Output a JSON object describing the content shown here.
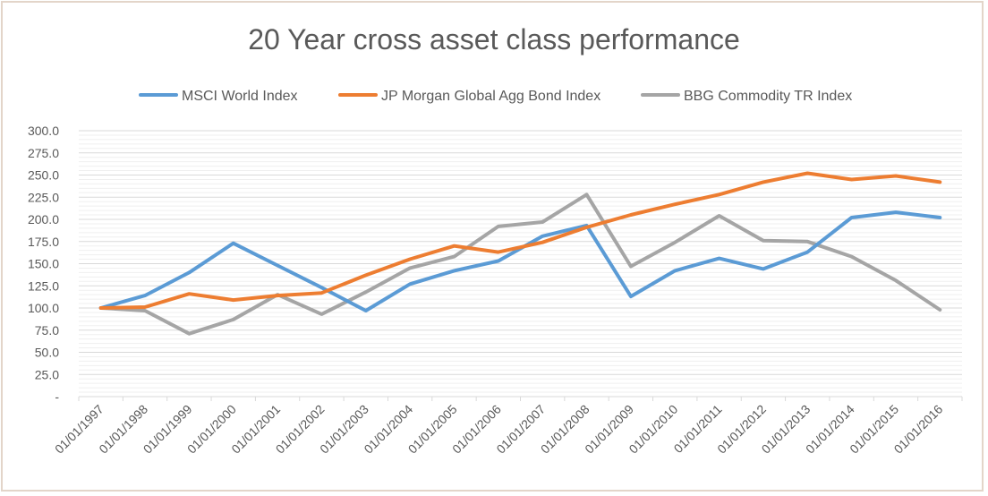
{
  "chart_data": {
    "type": "line",
    "title": "20 Year cross asset class performance",
    "xlabel": "",
    "ylabel": "",
    "categories": [
      "01/01/1997",
      "01/01/1998",
      "01/01/1999",
      "01/01/2000",
      "01/01/2001",
      "01/01/2002",
      "01/01/2003",
      "01/01/2004",
      "01/01/2005",
      "01/01/2006",
      "01/01/2007",
      "01/01/2008",
      "01/01/2009",
      "01/01/2010",
      "01/01/2011",
      "01/01/2012",
      "01/01/2013",
      "01/01/2014",
      "01/01/2015",
      "01/01/2016"
    ],
    "ylim": [
      0,
      300
    ],
    "y_ticks": [
      "-",
      "25.0",
      "50.0",
      "75.0",
      "100.0",
      "125.0",
      "150.0",
      "175.0",
      "200.0",
      "225.0",
      "250.0",
      "275.0",
      "300.0"
    ],
    "grid": true,
    "legend_position": "top",
    "series": [
      {
        "name": "MSCI World Index",
        "color": "#5b9bd5",
        "values": [
          100,
          114,
          140,
          173,
          148,
          123,
          97,
          127,
          142,
          153,
          181,
          193,
          113,
          142,
          156,
          144,
          163,
          202,
          208,
          202
        ]
      },
      {
        "name": "JP Morgan Global Agg Bond Index",
        "color": "#ed7d31",
        "values": [
          100,
          101,
          116,
          109,
          114,
          117,
          137,
          155,
          170,
          163,
          174,
          191,
          205,
          217,
          228,
          242,
          252,
          245,
          249,
          242
        ]
      },
      {
        "name": "BBG Commodity TR Index",
        "color": "#a5a5a5",
        "values": [
          100,
          97,
          71,
          87,
          115,
          93,
          118,
          145,
          158,
          192,
          197,
          228,
          147,
          174,
          204,
          176,
          175,
          158,
          131,
          98
        ]
      }
    ]
  }
}
